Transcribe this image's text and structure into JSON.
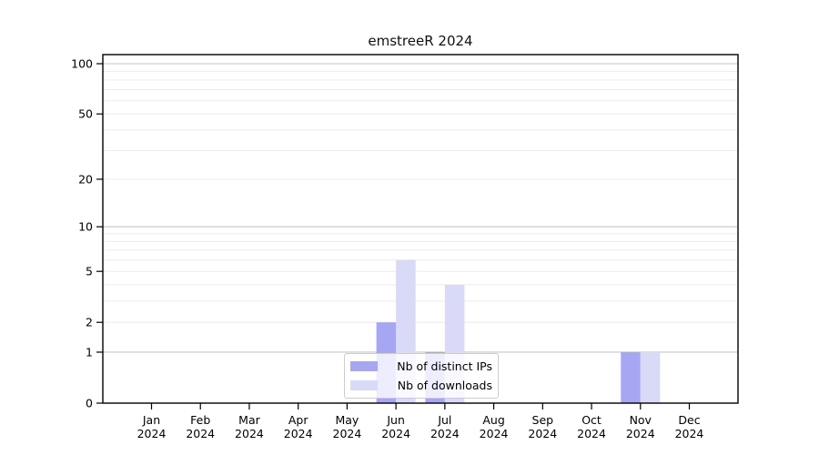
{
  "chart_data": {
    "type": "bar",
    "title": "emstreeR 2024",
    "categories": [
      "Jan",
      "Feb",
      "Mar",
      "Apr",
      "May",
      "Jun",
      "Jul",
      "Aug",
      "Sep",
      "Oct",
      "Nov",
      "Dec"
    ],
    "year_label": "2024",
    "series": [
      {
        "name": "Nb of distinct IPs",
        "color": "#a6a6f2",
        "values": [
          0,
          0,
          0,
          0,
          0,
          2,
          1,
          0,
          0,
          0,
          1,
          0
        ]
      },
      {
        "name": "Nb of downloads",
        "color": "#d9d9f8",
        "values": [
          0,
          0,
          0,
          0,
          0,
          6,
          4,
          0,
          0,
          0,
          1,
          0
        ]
      }
    ],
    "yticks": [
      0,
      1,
      2,
      5,
      10,
      20,
      50,
      100
    ],
    "y_scale": "log10(value+1)",
    "ylim": [
      0,
      113
    ],
    "xlabel": "",
    "ylabel": "",
    "grid": {
      "orientation": "horizontal",
      "major_values": [
        1,
        10,
        100
      ],
      "minor_values": [
        2,
        3,
        4,
        5,
        6,
        7,
        8,
        9,
        20,
        30,
        40,
        50,
        60,
        70,
        80,
        90
      ],
      "major_color": "#c6c6c6",
      "minor_color": "#ececec"
    },
    "axis_color": "#000000",
    "legend_position": "inside-bottom-center"
  }
}
